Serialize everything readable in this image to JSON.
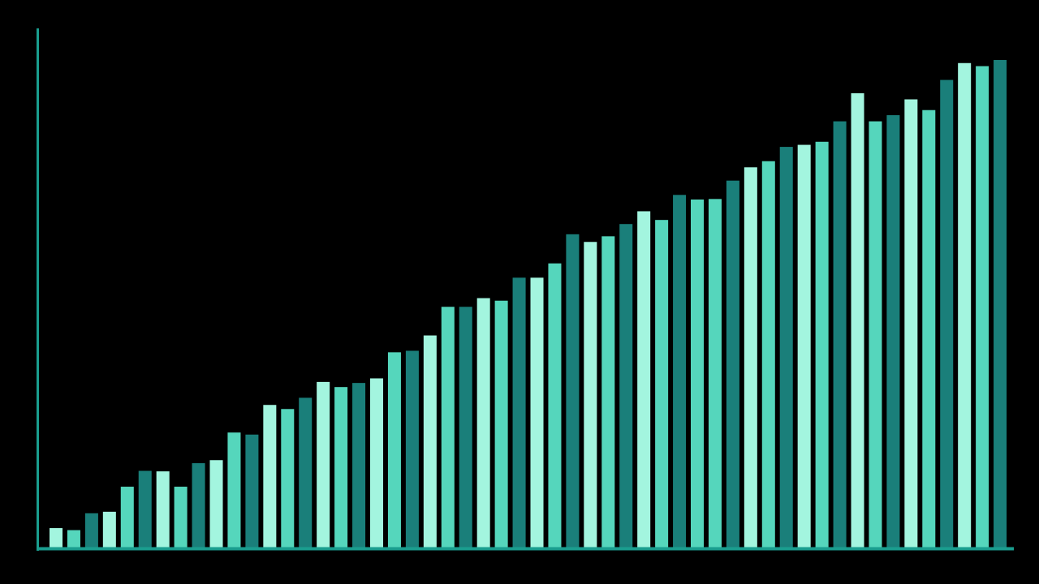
{
  "chart_data": {
    "type": "bar",
    "title": "",
    "xlabel": "",
    "ylabel": "",
    "grid": false,
    "legend": "none",
    "ylim": [
      0,
      100
    ],
    "values": [
      3.8,
      3.4,
      6.7,
      7.0,
      11.9,
      15.0,
      14.9,
      11.9,
      16.5,
      17.1,
      22.5,
      22.1,
      27.9,
      27.1,
      29.3,
      32.4,
      31.4,
      32.2,
      33.1,
      38.2,
      38.5,
      41.5,
      47.1,
      47.1,
      48.8,
      48.3,
      52.8,
      52.8,
      55.6,
      61.3,
      59.8,
      60.9,
      63.3,
      65.8,
      64.1,
      69.0,
      68.1,
      68.2,
      71.8,
      74.4,
      75.6,
      78.4,
      78.8,
      79.4,
      83.4,
      88.9,
      83.4,
      84.6,
      87.7,
      85.6,
      91.5,
      94.8,
      94.2,
      95.4
    ],
    "colors": {
      "background": "#000000",
      "axis": "#1A9E8F",
      "palette": [
        "#A3F5DF",
        "#55D6BC",
        "#1A7F7A"
      ]
    },
    "color_index": [
      0,
      1,
      2,
      0,
      1,
      2,
      0,
      1,
      2,
      0,
      1,
      2,
      0,
      1,
      2,
      0,
      1,
      2,
      0,
      1,
      2,
      0,
      1,
      2,
      0,
      1,
      2,
      0,
      1,
      2,
      0,
      1,
      2,
      0,
      1,
      2,
      1,
      1,
      2,
      0,
      1,
      2,
      0,
      1,
      2,
      0,
      1,
      2,
      0,
      1,
      2,
      0,
      1,
      2
    ]
  }
}
